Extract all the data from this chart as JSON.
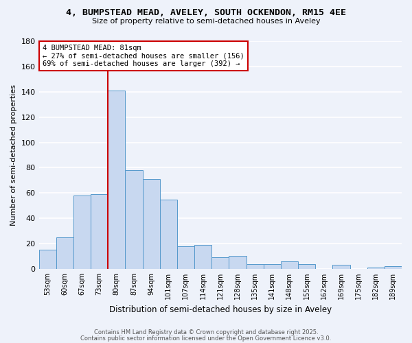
{
  "title_line1": "4, BUMPSTEAD MEAD, AVELEY, SOUTH OCKENDON, RM15 4EE",
  "title_line2": "Size of property relative to semi-detached houses in Aveley",
  "xlabel": "Distribution of semi-detached houses by size in Aveley",
  "ylabel": "Number of semi-detached properties",
  "bin_labels": [
    "53sqm",
    "60sqm",
    "67sqm",
    "73sqm",
    "80sqm",
    "87sqm",
    "94sqm",
    "101sqm",
    "107sqm",
    "114sqm",
    "121sqm",
    "128sqm",
    "135sqm",
    "141sqm",
    "148sqm",
    "155sqm",
    "162sqm",
    "169sqm",
    "175sqm",
    "182sqm",
    "189sqm"
  ],
  "bar_values": [
    15,
    25,
    58,
    59,
    141,
    78,
    71,
    55,
    18,
    19,
    9,
    10,
    4,
    4,
    6,
    4,
    0,
    3,
    0,
    1,
    2
  ],
  "bar_color": "#c8d8f0",
  "bar_edge_color": "#5599cc",
  "vline_index": 4,
  "vline_color": "#cc0000",
  "ylim": [
    0,
    180
  ],
  "yticks": [
    0,
    20,
    40,
    60,
    80,
    100,
    120,
    140,
    160,
    180
  ],
  "annotation_title": "4 BUMPSTEAD MEAD: 81sqm",
  "annotation_line1": "← 27% of semi-detached houses are smaller (156)",
  "annotation_line2": "69% of semi-detached houses are larger (392) →",
  "annotation_box_color": "#ffffff",
  "annotation_box_edge": "#cc0000",
  "footer_line1": "Contains HM Land Registry data © Crown copyright and database right 2025.",
  "footer_line2": "Contains public sector information licensed under the Open Government Licence v3.0.",
  "background_color": "#eef2fa",
  "grid_color": "#d8e0f0"
}
